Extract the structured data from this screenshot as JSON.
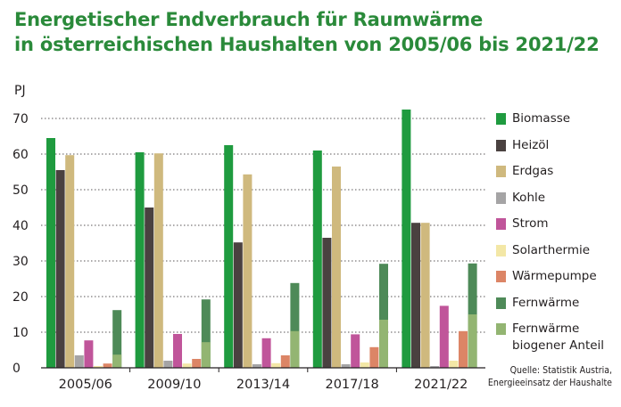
{
  "title": {
    "line1": "Energetischer Endverbrauch für Raumwärme",
    "line2": "in österreichischen Haushalten von 2005/06 bis 2021/22"
  },
  "source": {
    "line1": "Quelle: Statistik Austria,",
    "line2": "Energieeinsatz der Haushalte"
  },
  "chart_data": {
    "type": "bar",
    "title": "Energetischer Endverbrauch für Raumwärme in österreichischen Haushalten von 2005/06 bis 2021/22",
    "ylabel": "PJ",
    "ylim": [
      0,
      70
    ],
    "yticks": [
      0,
      10,
      20,
      30,
      40,
      50,
      60,
      70
    ],
    "grid": true,
    "legend_position": "right",
    "categories": [
      "2005/06",
      "2009/10",
      "2013/14",
      "2017/18",
      "2021/22"
    ],
    "series": [
      {
        "name": "Biomasse",
        "color": "#1f9b3f",
        "values": [
          64.5,
          60.5,
          62.5,
          61,
          72.5
        ]
      },
      {
        "name": "Heizöl",
        "color": "#4a4140",
        "values": [
          55.5,
          45,
          35.2,
          36.5,
          40.7
        ]
      },
      {
        "name": "Erdgas",
        "color": "#cfb97e",
        "values": [
          59.7,
          60.2,
          54.3,
          56.5,
          40.7
        ]
      },
      {
        "name": "Kohle",
        "color": "#a5a4a5",
        "values": [
          3.5,
          2,
          1,
          1,
          0.5
        ]
      },
      {
        "name": "Strom",
        "color": "#c0559a",
        "values": [
          7.7,
          9.5,
          8.3,
          9.4,
          17.4
        ]
      },
      {
        "name": "Solarthermie",
        "color": "#f3e7a6",
        "values": [
          0.5,
          1.2,
          1.3,
          1.5,
          2
        ]
      },
      {
        "name": "Wärmepumpe",
        "color": "#dc8566",
        "values": [
          1.2,
          2.5,
          3.5,
          5.8,
          10.3
        ]
      },
      {
        "name": "Fernwärme",
        "color": "#4e8a58",
        "values": [
          16.2,
          19.2,
          23.8,
          29.2,
          29.3
        ]
      },
      {
        "name": "Fernwärme\nbiogener Anteil",
        "color": "#93b572",
        "overlay_on": "Fernwärme",
        "values": [
          3.7,
          7.2,
          10.3,
          13.5,
          15
        ]
      }
    ]
  }
}
